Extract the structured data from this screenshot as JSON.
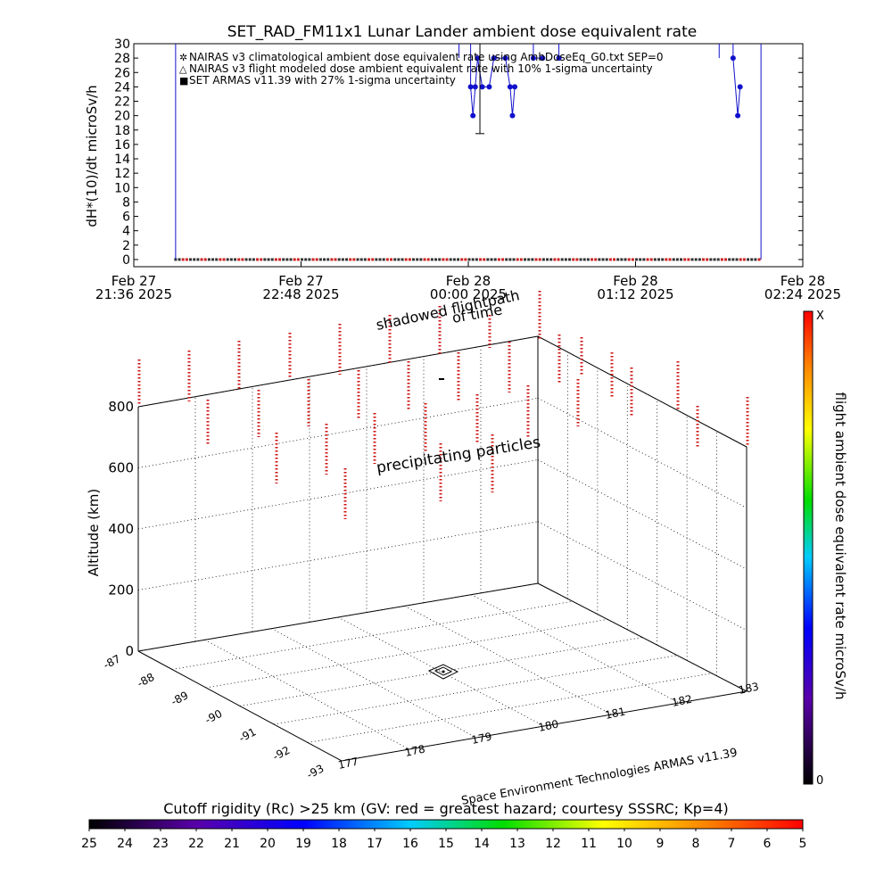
{
  "chart_data": [
    {
      "type": "line",
      "title": "SET_RAD_FM11x1  Lunar Lander ambient dose equivalent rate",
      "ylabel": "dH*(10)/dt microSv/h",
      "ylim": [
        -1,
        30
      ],
      "y_ticks": [
        0,
        2,
        4,
        6,
        8,
        10,
        12,
        14,
        16,
        18,
        20,
        22,
        24,
        26,
        28,
        30
      ],
      "xlim_minutes": [
        0,
        288
      ],
      "x_ticks": [
        {
          "m": 0,
          "date": "Feb 27",
          "time": "21:36 2025"
        },
        {
          "m": 72,
          "date": "Feb 27",
          "time": "22:48 2025"
        },
        {
          "m": 144,
          "date": "Feb 28",
          "time": "00:00 2025"
        },
        {
          "m": 216,
          "date": "Feb 28",
          "time": "01:12 2025"
        },
        {
          "m": 288,
          "date": "Feb 28",
          "time": "02:24 2025"
        }
      ],
      "legend": [
        {
          "marker": "✲",
          "color": "#cc2222",
          "text": "NAIRAS v3 climatological ambient dose equivalent rate using AmbDoseEq_G0.txt SEP=0"
        },
        {
          "marker": "△",
          "color": "#000000",
          "text": "NAIRAS v3 flight modeled dose ambient equivalent rate with 10% 1-sigma uncertainty"
        },
        {
          "marker": "■",
          "color": "#1111cc",
          "text": "SET ARMAS v11.39 with 27% 1-sigma uncertainty"
        }
      ],
      "series": [
        {
          "name": "SET ARMAS v11.39 with 27% 1-sigma uncertainty",
          "color": "#1111cc",
          "points": [
            [
              145,
              24
            ],
            [
              146,
              20
            ],
            [
              147,
              24
            ],
            [
              148,
              28
            ],
            [
              150,
              24
            ],
            [
              153,
              24
            ],
            [
              155,
              28
            ],
            [
              160,
              28
            ],
            [
              162,
              24
            ],
            [
              163,
              20
            ],
            [
              164,
              24
            ],
            [
              172,
              28
            ],
            [
              176,
              28
            ],
            [
              183,
              28
            ],
            [
              258,
              28
            ],
            [
              260,
              20
            ],
            [
              261,
              24
            ]
          ],
          "error_bar": {
            "x": 149,
            "y": 24,
            "low": 17.5,
            "high": 30.5
          }
        }
      ],
      "baseline_window_minutes": [
        18,
        270
      ]
    },
    {
      "type": "scatter",
      "subtitle": "shadowed flightpath",
      "subtitle2": "of time",
      "annotation": "precipitating particles",
      "zlabel": "Altitude (km)",
      "z_ticks": [
        "0",
        "200",
        "400",
        "600",
        "800"
      ],
      "y_ticks": [
        "-87",
        "-88",
        "-89",
        "-90",
        "-91",
        "-92",
        "-93"
      ],
      "x_ticks": [
        "177",
        "178",
        "179",
        "180",
        "181",
        "182",
        "183"
      ],
      "credit": "Space Environment Technologies ARMAS v11.39",
      "colorbar_label": "flight ambient dose equivalent rate microSv/h",
      "colorbar_top": "X",
      "colorbar_bottom": "0",
      "rigidity_title": "Cutoff rigidity (Rc) >25 km (GV: red = greatest hazard; courtesy SSSRC; Kp=4)",
      "rigidity_ticks": [
        "25",
        "24",
        "23",
        "22",
        "21",
        "20",
        "19",
        "18",
        "17",
        "16",
        "15",
        "14",
        "13",
        "12",
        "11",
        "10",
        "9",
        "8",
        "7",
        "6",
        "5"
      ]
    }
  ]
}
